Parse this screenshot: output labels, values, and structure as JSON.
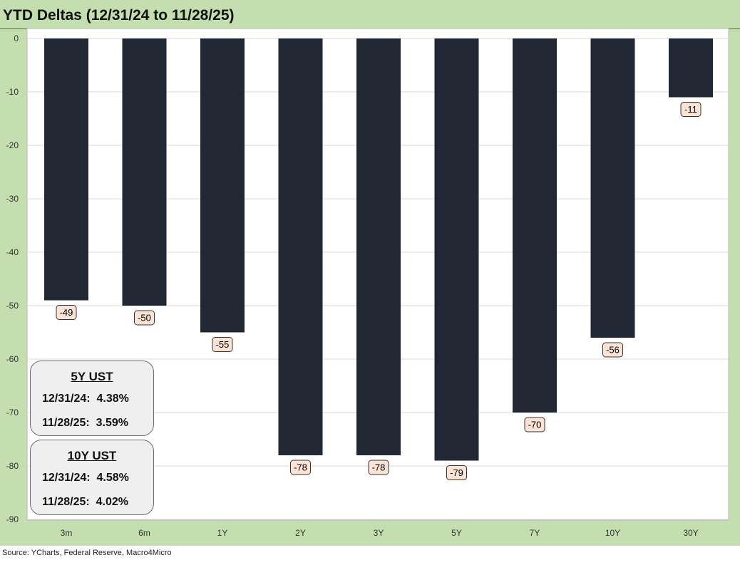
{
  "title": "YTD Deltas (12/31/24 to 11/28/25)",
  "source": "Source: YCharts, Federal Reserve, Macro4Micro",
  "colors": {
    "bar": "#222833",
    "frame": "#c4deb0",
    "label_bg": "#fbe3d6",
    "box_bg": "#efefef"
  },
  "chart_data": {
    "type": "bar",
    "categories": [
      "3m",
      "6m",
      "1Y",
      "2Y",
      "3Y",
      "5Y",
      "7Y",
      "10Y",
      "30Y"
    ],
    "values": [
      -49,
      -50,
      -55,
      -78,
      -78,
      -79,
      -70,
      -56,
      -11
    ],
    "data_labels": [
      "-49",
      "-50",
      "-55",
      "-78",
      "-78",
      "-79",
      "-70",
      "-56",
      "-11"
    ],
    "ylim": [
      -90,
      0
    ],
    "yticks": [
      0,
      -10,
      -20,
      -30,
      -40,
      -50,
      -60,
      -70,
      -80,
      -90
    ],
    "ytick_labels": [
      "0",
      "-10",
      "-20",
      "-30",
      "-40",
      "-50",
      "-60",
      "-70",
      "-80",
      "-90"
    ],
    "grid": true,
    "xlabel": "",
    "ylabel": ""
  },
  "boxes": [
    {
      "header": "5Y UST",
      "row1": "12/31/24:  4.38%",
      "row2": "11/28/25:  3.59%"
    },
    {
      "header": "10Y UST",
      "row1": "12/31/24:  4.58%",
      "row2": "11/28/25:  4.02%"
    }
  ]
}
